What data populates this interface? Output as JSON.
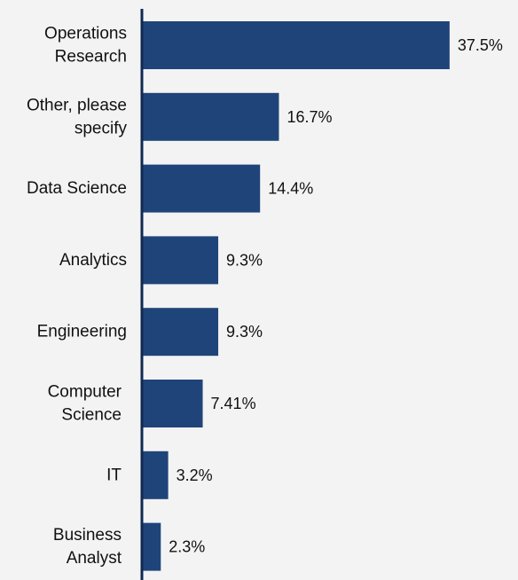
{
  "chart_data": {
    "type": "bar",
    "orientation": "horizontal",
    "categories": [
      [
        "Operations",
        "Research"
      ],
      [
        "Other, please",
        "specify"
      ],
      [
        "Data Science"
      ],
      [
        "Analytics"
      ],
      [
        "Engineering"
      ],
      [
        "Computer",
        "Science"
      ],
      [
        "IT"
      ],
      [
        "Business",
        "Analyst"
      ]
    ],
    "values": [
      37.5,
      16.7,
      14.4,
      9.3,
      9.3,
      7.41,
      3.2,
      2.3
    ],
    "value_labels": [
      "37.5%",
      "16.7%",
      "14.4%",
      "9.3%",
      "9.3%",
      "7.41%",
      "3.2%",
      "2.3%"
    ],
    "title": "",
    "xlabel": "",
    "ylabel": "",
    "grid": false,
    "legend": "none",
    "colors": {
      "bar": "#1f4479",
      "axis": "#0f2a52",
      "background": "#f3f3f3"
    }
  }
}
